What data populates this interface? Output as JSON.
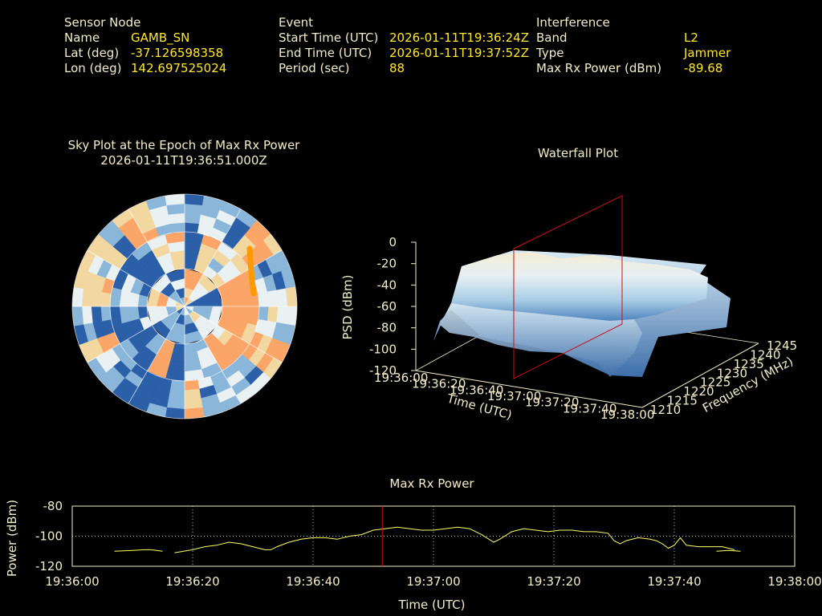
{
  "header": {
    "sensor": {
      "heading": "Sensor Node",
      "name_label": "Name",
      "name_value": "GAMB_SN",
      "lat_label": "Lat (deg)",
      "lat_value": "-37.126598358",
      "lon_label": "Lon (deg)",
      "lon_value": "142.697525024"
    },
    "event": {
      "heading": "Event",
      "start_label": "Start Time (UTC)",
      "start_value": "2026-01-11T19:36:24Z",
      "end_label": "End Time (UTC)",
      "end_value": "2026-01-11T19:37:52Z",
      "period_label": "Period (sec)",
      "period_value": "88"
    },
    "interference": {
      "heading": "Interference",
      "band_label": "Band",
      "band_value": "L2",
      "type_label": "Type",
      "type_value": "Jammer",
      "maxrx_label": "Max Rx Power (dBm)",
      "maxrx_value": "-89.68"
    }
  },
  "colors": {
    "background": "#000000",
    "label_text": "#f4edc8",
    "value_text": "#ffe82a",
    "series_line": "#ffff66",
    "epoch_marker": "#cc1111",
    "sky_track": "#ff9900"
  },
  "chart_data": [
    {
      "type": "heatmap",
      "title": "Sky Plot at the Epoch of Max Rx Power",
      "subtitle": "2026-01-11T19:36:51.000Z",
      "projection": "polar",
      "colormap": [
        "#2b5fa8",
        "#8ab6da",
        "#e9f1f2",
        "#f3d7a0",
        "#fba668"
      ],
      "highlight_track": "orange arc in the north-east sector"
    },
    {
      "type": "area",
      "title": "Waterfall Plot",
      "xlabel": "Time (UTC)",
      "ylabel": "Frequency (MHz)",
      "zlabel": "PSD (dBm)",
      "x_ticks": [
        "19:36:00",
        "19:36:20",
        "19:36:40",
        "19:37:00",
        "19:37:20",
        "19:37:40",
        "19:38:00"
      ],
      "y_ticks": [
        "1210",
        "1215",
        "1220",
        "1225",
        "1230",
        "1235",
        "1240",
        "1245"
      ],
      "z_ticks": [
        "0",
        "-20",
        "-40",
        "-60",
        "-80",
        "-100",
        "-120"
      ],
      "zlim": [
        -120,
        0
      ],
      "ylim": [
        1210,
        1245
      ],
      "epoch_plane_time": "19:36:51"
    },
    {
      "type": "line",
      "title": "Max Rx Power",
      "xlabel": "Time (UTC)",
      "ylabel": "Power (dBm)",
      "x_ticks": [
        "19:36:00",
        "19:36:20",
        "19:36:40",
        "19:37:00",
        "19:37:20",
        "19:37:40",
        "19:38:00"
      ],
      "y_ticks": [
        "-80",
        "-100",
        "-120"
      ],
      "xlim": [
        0,
        120
      ],
      "ylim": [
        -120,
        -80
      ],
      "grid": true,
      "marker_time_sec": 51.5,
      "series": [
        {
          "segments": [
            [
              [
                7,
                -110
              ],
              [
                10,
                -109.5
              ],
              [
                12,
                -109
              ],
              [
                13,
                -109
              ],
              [
                14,
                -109.5
              ],
              [
                15,
                -110
              ]
            ],
            [
              [
                17,
                -111
              ],
              [
                20,
                -109
              ],
              [
                22,
                -107
              ],
              [
                24,
                -106
              ],
              [
                26,
                -104
              ],
              [
                28,
                -105
              ],
              [
                30,
                -107
              ],
              [
                32,
                -109
              ],
              [
                33,
                -109
              ],
              [
                34,
                -107
              ],
              [
                36,
                -104
              ],
              [
                38,
                -102
              ],
              [
                40,
                -101
              ],
              [
                42,
                -101
              ],
              [
                44,
                -102
              ],
              [
                46,
                -100
              ],
              [
                48,
                -99
              ],
              [
                50,
                -96
              ],
              [
                52,
                -95
              ],
              [
                54,
                -94
              ],
              [
                56,
                -95
              ],
              [
                58,
                -96
              ],
              [
                60,
                -96
              ],
              [
                62,
                -95
              ],
              [
                64,
                -94
              ],
              [
                66,
                -95
              ],
              [
                68,
                -99
              ],
              [
                70,
                -104
              ],
              [
                71,
                -102
              ],
              [
                73,
                -97
              ],
              [
                75,
                -95
              ],
              [
                77,
                -96
              ],
              [
                79,
                -97
              ],
              [
                81,
                -96
              ],
              [
                83,
                -96
              ],
              [
                85,
                -97
              ],
              [
                87,
                -97
              ],
              [
                89,
                -98
              ],
              [
                90,
                -103
              ],
              [
                91,
                -105
              ],
              [
                92,
                -103
              ],
              [
                94,
                -101
              ],
              [
                96,
                -102
              ],
              [
                97,
                -103
              ],
              [
                98,
                -105
              ],
              [
                99,
                -108
              ],
              [
                100,
                -106
              ],
              [
                101,
                -101
              ],
              [
                102,
                -106
              ],
              [
                104,
                -107
              ],
              [
                106,
                -107
              ],
              [
                108,
                -107
              ],
              [
                110,
                -109
              ]
            ],
            [
              [
                107,
                -110
              ],
              [
                109,
                -109.5
              ],
              [
                111,
                -110
              ]
            ]
          ]
        }
      ]
    }
  ]
}
